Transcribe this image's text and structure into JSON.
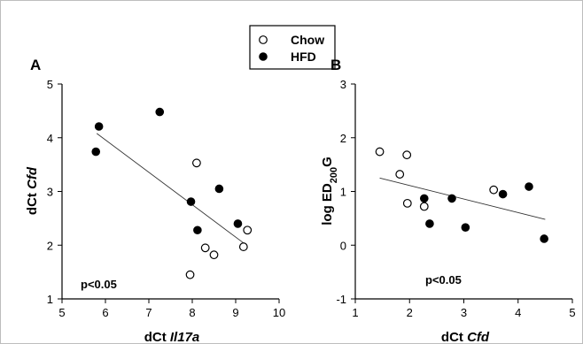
{
  "legend": {
    "items": [
      {
        "label": "Chow",
        "marker": "open-circle"
      },
      {
        "label": "HFD",
        "marker": "filled-circle"
      }
    ]
  },
  "chart_data": [
    {
      "type": "scatter",
      "panel_label": "A",
      "xlabel": "dCt Il17a",
      "xlabel_parts": {
        "prefix": "dCt ",
        "italic": "Il17a"
      },
      "ylabel": "dCt Cfd",
      "ylabel_parts": {
        "prefix": "dCt ",
        "italic": "Cfd"
      },
      "xlim": [
        5,
        10
      ],
      "ylim": [
        1,
        5
      ],
      "xticks": [
        "5",
        "6",
        "7",
        "8",
        "9",
        "10"
      ],
      "yticks": [
        "1",
        "2",
        "3",
        "4",
        "5"
      ],
      "annotation": "p<0.05",
      "grid": false,
      "series": [
        {
          "name": "Chow",
          "marker": "open",
          "points": [
            [
              7.95,
              1.45
            ],
            [
              8.1,
              3.53
            ],
            [
              8.3,
              1.95
            ],
            [
              8.5,
              1.82
            ],
            [
              9.18,
              1.97
            ],
            [
              9.27,
              2.28
            ]
          ]
        },
        {
          "name": "HFD",
          "marker": "filled",
          "points": [
            [
              5.78,
              3.74
            ],
            [
              5.85,
              4.21
            ],
            [
              7.25,
              4.48
            ],
            [
              7.97,
              2.81
            ],
            [
              8.12,
              2.28
            ],
            [
              8.62,
              3.05
            ],
            [
              9.05,
              2.4
            ]
          ]
        }
      ],
      "trendline": [
        [
          5.8,
          4.08
        ],
        [
          9.2,
          2.03
        ]
      ]
    },
    {
      "type": "scatter",
      "panel_label": "B",
      "xlabel": "dCt Cfd",
      "xlabel_parts": {
        "prefix": "dCt ",
        "italic": "Cfd"
      },
      "ylabel": "log ED200G",
      "ylabel_parts": {
        "prefix": "log ED",
        "sub": "200",
        "suffix": "G"
      },
      "xlim": [
        1,
        5
      ],
      "ylim": [
        -1,
        3
      ],
      "xticks": [
        "1",
        "2",
        "3",
        "4",
        "5"
      ],
      "yticks": [
        "-1",
        "0",
        "1",
        "2",
        "3"
      ],
      "annotation": "p<0.05",
      "grid": false,
      "series": [
        {
          "name": "Chow",
          "marker": "open",
          "points": [
            [
              1.45,
              1.74
            ],
            [
              1.95,
              1.68
            ],
            [
              1.82,
              1.32
            ],
            [
              1.96,
              0.78
            ],
            [
              2.27,
              0.72
            ],
            [
              3.55,
              1.03
            ]
          ]
        },
        {
          "name": "HFD",
          "marker": "filled",
          "points": [
            [
              2.27,
              0.87
            ],
            [
              2.37,
              0.4
            ],
            [
              2.78,
              0.87
            ],
            [
              3.03,
              0.33
            ],
            [
              3.72,
              0.95
            ],
            [
              4.2,
              1.09
            ],
            [
              4.48,
              0.12
            ]
          ]
        }
      ],
      "trendline": [
        [
          1.45,
          1.25
        ],
        [
          4.5,
          0.48
        ]
      ]
    }
  ]
}
